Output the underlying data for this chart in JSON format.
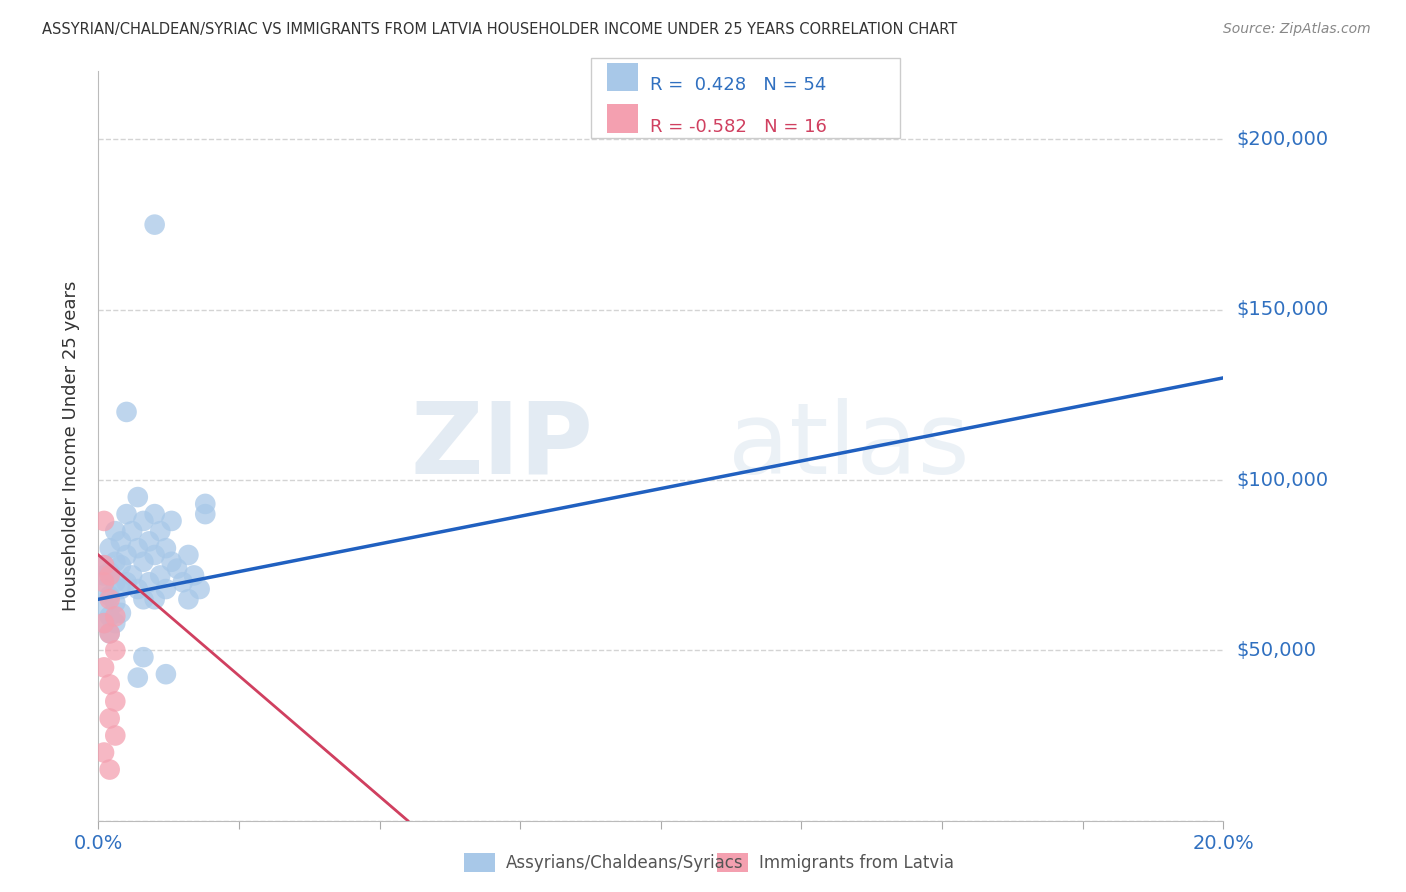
{
  "title": "ASSYRIAN/CHALDEAN/SYRIAC VS IMMIGRANTS FROM LATVIA HOUSEHOLDER INCOME UNDER 25 YEARS CORRELATION CHART",
  "source": "Source: ZipAtlas.com",
  "ylabel": "Householder Income Under 25 years",
  "legend_label1": "Assyrians/Chaldeans/Syriacs",
  "legend_label2": "Immigrants from Latvia",
  "R1": 0.428,
  "N1": 54,
  "R2": -0.582,
  "N2": 16,
  "watermark_zip": "ZIP",
  "watermark_atlas": "atlas",
  "blue_color": "#a8c8e8",
  "pink_color": "#f4a0b0",
  "blue_line_color": "#2060c0",
  "pink_line_color": "#d04060",
  "xlim": [
    0,
    0.2
  ],
  "ylim": [
    0,
    220000
  ],
  "ytick_labels": [
    "$50,000",
    "$100,000",
    "$150,000",
    "$200,000"
  ],
  "ytick_values": [
    50000,
    100000,
    150000,
    200000
  ],
  "xtick_values": [
    0.0,
    0.025,
    0.05,
    0.075,
    0.1,
    0.125,
    0.15,
    0.175,
    0.2
  ],
  "background_color": "#ffffff",
  "grid_color": "#d0d0d0",
  "blue_x": [
    0.001,
    0.001,
    0.001,
    0.001,
    0.001,
    0.002,
    0.002,
    0.002,
    0.002,
    0.002,
    0.003,
    0.003,
    0.003,
    0.003,
    0.003,
    0.004,
    0.004,
    0.004,
    0.004,
    0.005,
    0.005,
    0.005,
    0.006,
    0.006,
    0.007,
    0.007,
    0.007,
    0.008,
    0.008,
    0.008,
    0.009,
    0.009,
    0.01,
    0.01,
    0.01,
    0.011,
    0.011,
    0.012,
    0.012,
    0.013,
    0.013,
    0.014,
    0.015,
    0.016,
    0.016,
    0.017,
    0.018,
    0.019,
    0.01,
    0.007,
    0.005,
    0.012,
    0.008,
    0.019
  ],
  "blue_y": [
    75000,
    68000,
    63000,
    58000,
    72000,
    80000,
    73000,
    66000,
    60000,
    55000,
    85000,
    76000,
    70000,
    64000,
    58000,
    82000,
    75000,
    68000,
    61000,
    90000,
    78000,
    70000,
    85000,
    72000,
    95000,
    80000,
    68000,
    88000,
    76000,
    65000,
    82000,
    70000,
    90000,
    78000,
    65000,
    85000,
    72000,
    80000,
    68000,
    76000,
    88000,
    74000,
    70000,
    78000,
    65000,
    72000,
    68000,
    90000,
    175000,
    42000,
    120000,
    43000,
    48000,
    93000
  ],
  "pink_x": [
    0.001,
    0.001,
    0.001,
    0.001,
    0.001,
    0.002,
    0.002,
    0.002,
    0.002,
    0.003,
    0.003,
    0.003,
    0.001,
    0.002,
    0.002,
    0.003
  ],
  "pink_y": [
    88000,
    75000,
    70000,
    58000,
    45000,
    72000,
    65000,
    55000,
    40000,
    60000,
    50000,
    35000,
    20000,
    30000,
    15000,
    25000
  ]
}
